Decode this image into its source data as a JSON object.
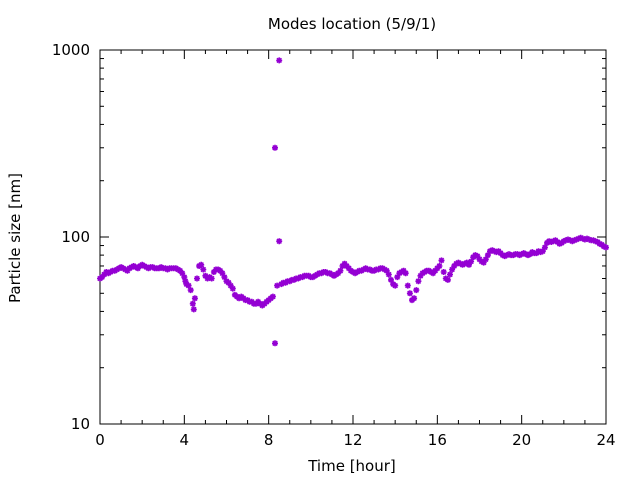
{
  "chart_data": {
    "type": "scatter",
    "title": "Modes location (5/9/1)",
    "xlabel": "Time [hour]",
    "ylabel": "Particle size [nm]",
    "xlim": [
      0,
      24
    ],
    "ylim": [
      10,
      1000
    ],
    "yscale": "log",
    "x_ticks": [
      0,
      4,
      8,
      12,
      16,
      20,
      24
    ],
    "x_tick_labels": [
      "0",
      "4",
      "8",
      "12",
      "16",
      "20",
      "24"
    ],
    "y_ticks": [
      10,
      100,
      1000
    ],
    "y_tick_labels": [
      "10",
      "100",
      "1000"
    ],
    "grid": false,
    "legend": "none",
    "marker_color": "#9400d3",
    "series": [
      {
        "points": [
          [
            0.0,
            60
          ],
          [
            0.1,
            61
          ],
          [
            0.2,
            63
          ],
          [
            0.3,
            65
          ],
          [
            0.4,
            64
          ],
          [
            0.5,
            65
          ],
          [
            0.6,
            66
          ],
          [
            0.7,
            66
          ],
          [
            0.8,
            67
          ],
          [
            0.9,
            68
          ],
          [
            1.0,
            69
          ],
          [
            1.1,
            68
          ],
          [
            1.2,
            67
          ],
          [
            1.3,
            66
          ],
          [
            1.4,
            68
          ],
          [
            1.5,
            69
          ],
          [
            1.6,
            70
          ],
          [
            1.7,
            69
          ],
          [
            1.8,
            68
          ],
          [
            1.9,
            70
          ],
          [
            2.0,
            71
          ],
          [
            2.1,
            70
          ],
          [
            2.2,
            69
          ],
          [
            2.3,
            68
          ],
          [
            2.4,
            69
          ],
          [
            2.5,
            69
          ],
          [
            2.6,
            68
          ],
          [
            2.7,
            68
          ],
          [
            2.8,
            68
          ],
          [
            2.9,
            69
          ],
          [
            3.0,
            68
          ],
          [
            3.1,
            68
          ],
          [
            3.2,
            67
          ],
          [
            3.3,
            68
          ],
          [
            3.4,
            68
          ],
          [
            3.5,
            68
          ],
          [
            3.6,
            68
          ],
          [
            3.7,
            67
          ],
          [
            3.8,
            66
          ],
          [
            3.9,
            64
          ],
          [
            4.0,
            61
          ],
          [
            4.05,
            58
          ],
          [
            4.1,
            56
          ],
          [
            4.2,
            55
          ],
          [
            4.3,
            52
          ],
          [
            4.4,
            44
          ],
          [
            4.45,
            41
          ],
          [
            4.5,
            47
          ],
          [
            4.6,
            60
          ],
          [
            4.7,
            70
          ],
          [
            4.8,
            71
          ],
          [
            4.9,
            67
          ],
          [
            5.0,
            62
          ],
          [
            5.1,
            60
          ],
          [
            5.2,
            61
          ],
          [
            5.3,
            60
          ],
          [
            5.4,
            65
          ],
          [
            5.5,
            67
          ],
          [
            5.6,
            67
          ],
          [
            5.7,
            66
          ],
          [
            5.8,
            64
          ],
          [
            5.9,
            61
          ],
          [
            6.0,
            58
          ],
          [
            6.1,
            57
          ],
          [
            6.2,
            55
          ],
          [
            6.3,
            53
          ],
          [
            6.4,
            49
          ],
          [
            6.5,
            48
          ],
          [
            6.6,
            47
          ],
          [
            6.7,
            48
          ],
          [
            6.8,
            47
          ],
          [
            6.9,
            46
          ],
          [
            7.0,
            46
          ],
          [
            7.1,
            45
          ],
          [
            7.2,
            45
          ],
          [
            7.3,
            44
          ],
          [
            7.4,
            44
          ],
          [
            7.5,
            45
          ],
          [
            7.6,
            44
          ],
          [
            7.7,
            43
          ],
          [
            7.8,
            44
          ],
          [
            7.9,
            45
          ],
          [
            8.0,
            46
          ],
          [
            8.1,
            47
          ],
          [
            8.2,
            48
          ],
          [
            8.3,
            27
          ],
          [
            8.3,
            300
          ],
          [
            8.4,
            55
          ],
          [
            8.5,
            95
          ],
          [
            8.5,
            880
          ],
          [
            8.6,
            56
          ],
          [
            8.7,
            57
          ],
          [
            8.8,
            57
          ],
          [
            8.9,
            58
          ],
          [
            9.0,
            58
          ],
          [
            9.1,
            59
          ],
          [
            9.2,
            59
          ],
          [
            9.3,
            60
          ],
          [
            9.4,
            60
          ],
          [
            9.5,
            61
          ],
          [
            9.6,
            61
          ],
          [
            9.7,
            62
          ],
          [
            9.8,
            62
          ],
          [
            9.9,
            62
          ],
          [
            10.0,
            61
          ],
          [
            10.1,
            61
          ],
          [
            10.2,
            62
          ],
          [
            10.3,
            63
          ],
          [
            10.4,
            64
          ],
          [
            10.5,
            64
          ],
          [
            10.6,
            65
          ],
          [
            10.7,
            65
          ],
          [
            10.8,
            64
          ],
          [
            10.9,
            64
          ],
          [
            11.0,
            63
          ],
          [
            11.1,
            62
          ],
          [
            11.2,
            63
          ],
          [
            11.3,
            64
          ],
          [
            11.4,
            66
          ],
          [
            11.5,
            70
          ],
          [
            11.6,
            72
          ],
          [
            11.7,
            70
          ],
          [
            11.8,
            68
          ],
          [
            11.9,
            66
          ],
          [
            12.0,
            65
          ],
          [
            12.1,
            64
          ],
          [
            12.2,
            65
          ],
          [
            12.3,
            66
          ],
          [
            12.4,
            66
          ],
          [
            12.5,
            67
          ],
          [
            12.6,
            68
          ],
          [
            12.7,
            67
          ],
          [
            12.8,
            67
          ],
          [
            12.9,
            66
          ],
          [
            13.0,
            66
          ],
          [
            13.1,
            67
          ],
          [
            13.2,
            67
          ],
          [
            13.3,
            68
          ],
          [
            13.4,
            68
          ],
          [
            13.5,
            67
          ],
          [
            13.6,
            66
          ],
          [
            13.7,
            63
          ],
          [
            13.8,
            59
          ],
          [
            13.9,
            56
          ],
          [
            14.0,
            55
          ],
          [
            14.1,
            61
          ],
          [
            14.2,
            64
          ],
          [
            14.3,
            65
          ],
          [
            14.4,
            66
          ],
          [
            14.5,
            64
          ],
          [
            14.6,
            55
          ],
          [
            14.7,
            50
          ],
          [
            14.8,
            46
          ],
          [
            14.9,
            47
          ],
          [
            15.0,
            52
          ],
          [
            15.1,
            58
          ],
          [
            15.2,
            62
          ],
          [
            15.3,
            64
          ],
          [
            15.4,
            65
          ],
          [
            15.5,
            66
          ],
          [
            15.6,
            66
          ],
          [
            15.7,
            65
          ],
          [
            15.8,
            64
          ],
          [
            15.9,
            66
          ],
          [
            16.0,
            68
          ],
          [
            16.1,
            70
          ],
          [
            16.2,
            75
          ],
          [
            16.3,
            65
          ],
          [
            16.4,
            60
          ],
          [
            16.5,
            59
          ],
          [
            16.6,
            63
          ],
          [
            16.7,
            67
          ],
          [
            16.8,
            70
          ],
          [
            16.9,
            72
          ],
          [
            17.0,
            73
          ],
          [
            17.1,
            72
          ],
          [
            17.2,
            71
          ],
          [
            17.3,
            72
          ],
          [
            17.4,
            73
          ],
          [
            17.5,
            71
          ],
          [
            17.6,
            74
          ],
          [
            17.7,
            78
          ],
          [
            17.8,
            80
          ],
          [
            17.9,
            79
          ],
          [
            18.0,
            76
          ],
          [
            18.1,
            74
          ],
          [
            18.2,
            73
          ],
          [
            18.3,
            76
          ],
          [
            18.4,
            80
          ],
          [
            18.5,
            84
          ],
          [
            18.6,
            85
          ],
          [
            18.7,
            84
          ],
          [
            18.8,
            83
          ],
          [
            18.9,
            84
          ],
          [
            19.0,
            82
          ],
          [
            19.1,
            80
          ],
          [
            19.2,
            79
          ],
          [
            19.3,
            80
          ],
          [
            19.4,
            81
          ],
          [
            19.5,
            80
          ],
          [
            19.6,
            80
          ],
          [
            19.7,
            81
          ],
          [
            19.8,
            81
          ],
          [
            19.9,
            80
          ],
          [
            20.0,
            81
          ],
          [
            20.1,
            82
          ],
          [
            20.2,
            81
          ],
          [
            20.3,
            80
          ],
          [
            20.4,
            81
          ],
          [
            20.5,
            83
          ],
          [
            20.6,
            82
          ],
          [
            20.7,
            82
          ],
          [
            20.8,
            84
          ],
          [
            20.9,
            83
          ],
          [
            21.0,
            84
          ],
          [
            21.1,
            88
          ],
          [
            21.2,
            93
          ],
          [
            21.3,
            95
          ],
          [
            21.4,
            94
          ],
          [
            21.5,
            95
          ],
          [
            21.6,
            96
          ],
          [
            21.7,
            94
          ],
          [
            21.8,
            92
          ],
          [
            21.9,
            93
          ],
          [
            22.0,
            95
          ],
          [
            22.1,
            96
          ],
          [
            22.2,
            97
          ],
          [
            22.3,
            96
          ],
          [
            22.4,
            95
          ],
          [
            22.5,
            96
          ],
          [
            22.6,
            97
          ],
          [
            22.7,
            98
          ],
          [
            22.8,
            99
          ],
          [
            22.9,
            98
          ],
          [
            23.0,
            97
          ],
          [
            23.1,
            98
          ],
          [
            23.2,
            97
          ],
          [
            23.3,
            96
          ],
          [
            23.4,
            96
          ],
          [
            23.5,
            95
          ],
          [
            23.6,
            94
          ],
          [
            23.7,
            92
          ],
          [
            23.8,
            91
          ],
          [
            23.9,
            89
          ],
          [
            24.0,
            88
          ]
        ]
      }
    ]
  }
}
